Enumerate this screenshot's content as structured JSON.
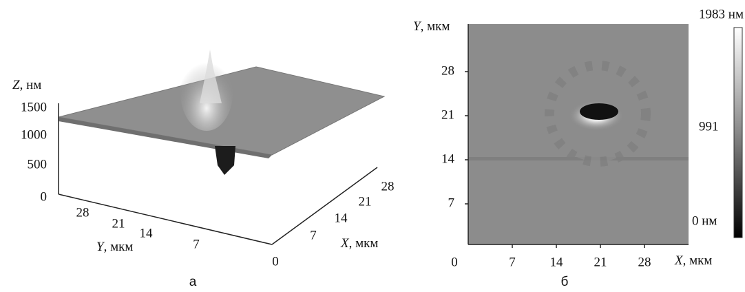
{
  "panel_a": {
    "label": "а",
    "z_axis": {
      "var": "Z",
      "unit": ", нм",
      "ticks": [
        1500,
        1000,
        500,
        0
      ]
    },
    "y_axis": {
      "var": "Y",
      "unit": ", мкм",
      "ticks": [
        28,
        21,
        14,
        7
      ]
    },
    "x_axis": {
      "var": "X",
      "unit": ", мкм",
      "ticks": [
        0,
        7,
        14,
        21,
        28
      ]
    }
  },
  "panel_b": {
    "label": "б",
    "y_axis": {
      "var": "Y",
      "unit": ", мкм",
      "ticks": [
        28,
        21,
        14,
        7
      ]
    },
    "x_axis": {
      "var": "X",
      "unit": ", мкм",
      "ticks": [
        0,
        7,
        14,
        21,
        28
      ]
    },
    "colorbar": {
      "max": "1983 нм",
      "mid": "991",
      "min": "0 нм"
    }
  }
}
